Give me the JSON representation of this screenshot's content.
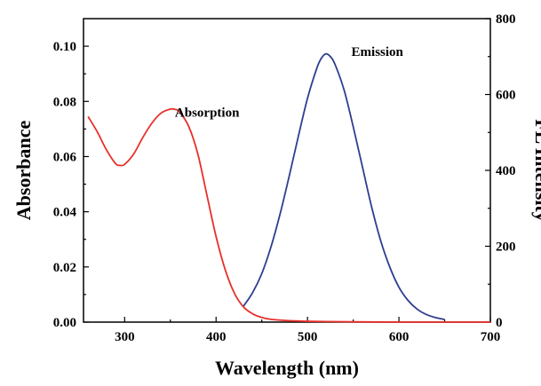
{
  "chart_data": {
    "type": "line",
    "xlabel": "Wavelength (nm)",
    "ylabel": "Absorbance",
    "y2label": "FL Intensity",
    "xlim": [
      255,
      700
    ],
    "ylim": [
      0,
      0.11
    ],
    "y2lim": [
      0,
      800
    ],
    "x_ticks": [
      300,
      400,
      500,
      600,
      700
    ],
    "y_ticks": [
      0.0,
      0.02,
      0.04,
      0.06,
      0.08,
      0.1
    ],
    "y_tick_labels": [
      "0.00",
      "0.02",
      "0.04",
      "0.06",
      "0.08",
      "0.10"
    ],
    "y2_ticks": [
      0,
      200,
      400,
      600,
      800
    ],
    "grid": false,
    "series": [
      {
        "name": "Absorption",
        "axis": "left",
        "color": "#e8302a",
        "x": [
          260,
          270,
          280,
          290,
          295,
          300,
          310,
          320,
          330,
          340,
          350,
          355,
          360,
          370,
          380,
          390,
          400,
          410,
          420,
          430,
          440,
          450,
          460,
          480,
          500,
          520,
          550,
          600,
          650,
          700
        ],
        "y": [
          0.0745,
          0.069,
          0.0625,
          0.0575,
          0.0568,
          0.0572,
          0.061,
          0.067,
          0.0722,
          0.0758,
          0.0772,
          0.0771,
          0.0762,
          0.071,
          0.061,
          0.046,
          0.031,
          0.019,
          0.0105,
          0.0055,
          0.003,
          0.0017,
          0.001,
          0.0005,
          0.0003,
          0.0002,
          0.0001,
          0.0,
          0.0,
          0.0
        ]
      },
      {
        "name": "Emission",
        "axis": "right",
        "color": "#2e3e8f",
        "x": [
          430,
          440,
          450,
          460,
          470,
          480,
          490,
          500,
          510,
          515,
          520,
          525,
          530,
          540,
          550,
          560,
          570,
          580,
          590,
          600,
          610,
          620,
          630,
          640,
          650
        ],
        "y": [
          42,
          78,
          128,
          198,
          285,
          385,
          490,
          590,
          668,
          695,
          707,
          700,
          680,
          612,
          515,
          410,
          305,
          215,
          145,
          92,
          57,
          34,
          20,
          12,
          7
        ]
      }
    ],
    "annotations": [
      {
        "text": "Absorption",
        "x": 355,
        "y": 0.0745
      },
      {
        "text": "Emission",
        "x": 548,
        "y": 0.0965
      }
    ]
  }
}
